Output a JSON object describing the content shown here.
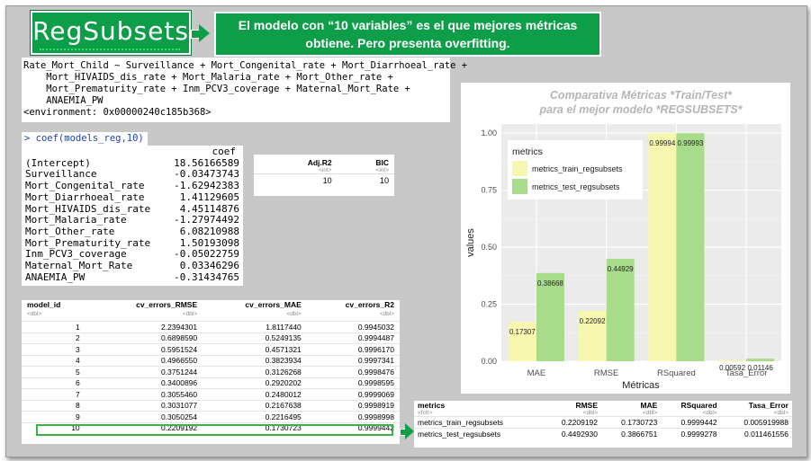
{
  "title": "RegSubsets",
  "banner": {
    "line1": "El modelo con “10 variables” es el que mejores métricas",
    "line2": "obtiene. Pero presenta overfitting."
  },
  "formula_lines": [
    "Rate_Mort_Child ~ Surveillance + Mort_Congenital_rate + Mort_Diarrhoeal_rate +",
    "    Mort_HIVAIDS_dis_rate + Mort_Malaria_rate + Mort_Other_rate +",
    "    Mort_Prematurity_rate + Inm_PCV3_coverage + Maternal_Mort_Rate +",
    "    ANAEMIA_PW",
    "<environment: 0x00000240c185b368>"
  ],
  "coef_command": "> coef(models_reg,10)",
  "coef_header": "coef",
  "coefs": [
    {
      "name": "(Intercept)",
      "value": "18.56166589"
    },
    {
      "name": "Surveillance",
      "value": "-0.03473743"
    },
    {
      "name": "Mort_Congenital_rate",
      "value": "-1.62942383"
    },
    {
      "name": "Mort_Diarrhoeal_rate",
      "value": "1.41129605"
    },
    {
      "name": "Mort_HIVAIDS_dis_rate",
      "value": "4.45114876"
    },
    {
      "name": "Mort_Malaria_rate",
      "value": "-1.27974492"
    },
    {
      "name": "Mort_Other_rate",
      "value": "6.08210988"
    },
    {
      "name": "Mort_Prematurity_rate",
      "value": "1.50193098"
    },
    {
      "name": "Inm_PCV3_coverage",
      "value": "-0.05022759"
    },
    {
      "name": "Maternal_Mort_Rate",
      "value": "0.03346296"
    },
    {
      "name": "ANAEMIA_PW",
      "value": "-0.31434765"
    }
  ],
  "adj_table": {
    "headers": [
      "Adj.R2",
      "BIC"
    ],
    "subheaders": [
      "<int>",
      "<int>"
    ],
    "row": [
      "10",
      "10"
    ]
  },
  "cv_table": {
    "headers": [
      "model_id",
      "cv_errors_RMSE",
      "cv_errors_MAE",
      "cv_errors_R2"
    ],
    "subheaders": [
      "<dbl>",
      "<dbl>",
      "<dbl>",
      "<dbl>"
    ],
    "rows": [
      [
        "1",
        "2.2394301",
        "1.8117440",
        "0.9945032"
      ],
      [
        "2",
        "0.6898590",
        "0.5249135",
        "0.9994487"
      ],
      [
        "3",
        "0.5951524",
        "0.4571321",
        "0.9996170"
      ],
      [
        "4",
        "0.4966550",
        "0.3823934",
        "0.9997341"
      ],
      [
        "5",
        "0.3751244",
        "0.3126268",
        "0.9998476"
      ],
      [
        "6",
        "0.3400896",
        "0.2920202",
        "0.9998595"
      ],
      [
        "7",
        "0.3055460",
        "0.2480012",
        "0.9999069"
      ],
      [
        "8",
        "0.3031077",
        "0.2167638",
        "0.9998919"
      ],
      [
        "9",
        "0.3050254",
        "0.2216495",
        "0.9998998"
      ],
      [
        "10",
        "0.2209192",
        "0.1730723",
        "0.9999442"
      ]
    ]
  },
  "metrics_table": {
    "headers": [
      "metrics",
      "RMSE",
      "MAE",
      "RSquared",
      "Tasa_Error"
    ],
    "subheaders": [
      "<fctr>",
      "<dbl>",
      "<dbl>",
      "<dbl>",
      "<dbl>"
    ],
    "rows": [
      [
        "metrics_train_regsubsets",
        "0.2209192",
        "0.1730723",
        "0.9999442",
        "0.005919988"
      ],
      [
        "metrics_test_regsubsets",
        "0.4492930",
        "0.3866751",
        "0.9999278",
        "0.011461556"
      ]
    ]
  },
  "chart_data": {
    "type": "bar",
    "title": "Comparativa Métricas *Train/Test*",
    "subtitle": "para el mejor modelo *REGSUBSETS*",
    "xlabel": "Métricas",
    "ylabel": "values",
    "categories": [
      "MAE",
      "RMSE",
      "RSquared",
      "Tasa_Error"
    ],
    "series": [
      {
        "name": "metrics_train_regsubsets",
        "values": [
          0.17307,
          0.22092,
          0.99994,
          0.00592
        ],
        "labels": [
          "0.17307",
          "0.22092",
          "0.99994",
          "0.00592"
        ],
        "color": "#f7f7b0"
      },
      {
        "name": "metrics_test_regsubsets",
        "values": [
          0.38668,
          0.44929,
          0.99993,
          0.01146
        ],
        "labels": [
          "0.38668",
          "0.44929",
          "0.99993",
          "0.01146"
        ],
        "color": "#a8dc8a"
      }
    ],
    "yticks": [
      0.0,
      0.25,
      0.5,
      0.75,
      1.0
    ],
    "ytick_labels": [
      "0.00",
      "0.25",
      "0.50",
      "0.75",
      "1.00"
    ],
    "ylim": [
      0,
      1.04
    ],
    "legend_title": "metrics",
    "legend_position": "top-left",
    "grid": true,
    "title_color": "#b5b5b5"
  }
}
